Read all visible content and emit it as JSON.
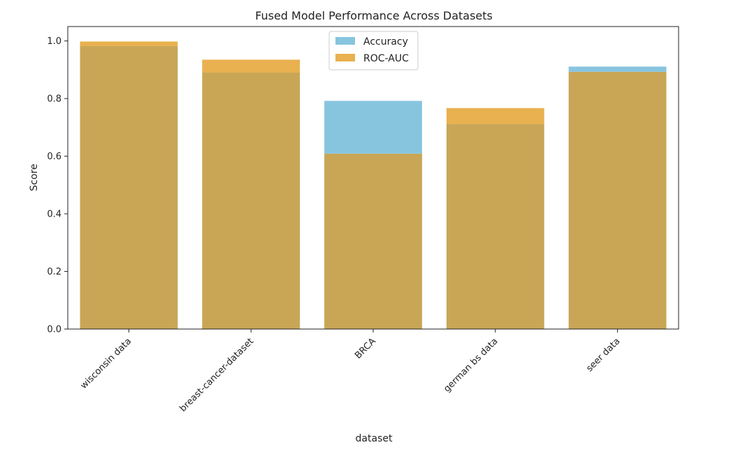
{
  "chart_data": {
    "type": "bar",
    "title": "Fused Model Performance Across Datasets",
    "xlabel": "dataset",
    "ylabel": "Score",
    "categories": [
      "wisconsin data",
      "breast-cancer-dataset",
      "BRCA",
      "german bs data",
      "seer data"
    ],
    "series": [
      {
        "name": "Accuracy",
        "color": "#87c5df",
        "values": [
          0.982,
          0.89,
          0.792,
          0.712,
          0.911
        ]
      },
      {
        "name": "ROC-AUC",
        "color": "#e9b14f",
        "values": [
          0.998,
          0.935,
          0.609,
          0.767,
          0.893
        ]
      }
    ],
    "overlap_color": "#c9a656",
    "ylim": [
      0,
      1.05
    ],
    "yticks": [
      0.0,
      0.2,
      0.4,
      0.6,
      0.8,
      1.0
    ],
    "ytick_labels": [
      "0.0",
      "0.2",
      "0.4",
      "0.6",
      "0.8",
      "1.0"
    ],
    "xtick_rotation": -45,
    "grid": false,
    "legend_position": "top-center"
  }
}
